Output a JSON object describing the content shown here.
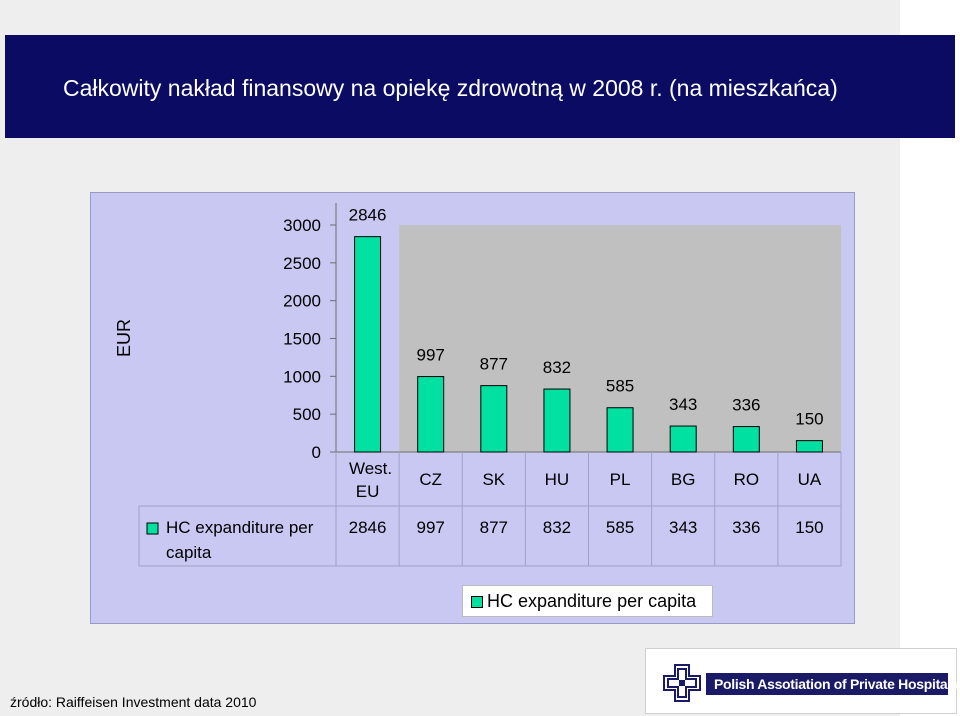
{
  "title": "Całkowity nakład finansowy na opiekę zdrowotną w 2008 r. (na mieszkańca)",
  "source": "źródło: Raiffeisen Investment data 2010",
  "logo": {
    "text": "Polish Assotiation of Private Hospitals"
  },
  "colors": {
    "bar": "#00e0a0",
    "plot_bg": "#c0c0c0",
    "chart_bg": "#c8c8f2",
    "title_bg": "#0b0b63"
  },
  "chart_data": {
    "type": "bar",
    "ylabel": "EUR",
    "ylim": [
      0,
      3000
    ],
    "yticks": [
      "3000",
      "2500",
      "2000",
      "1500",
      "1000",
      "500",
      "0"
    ],
    "categories": [
      "West. EU",
      "CZ",
      "SK",
      "HU",
      "PL",
      "BG",
      "RO",
      "UA"
    ],
    "series": [
      {
        "name": "HC expanditure per capita",
        "values": [
          2846,
          997,
          877,
          832,
          585,
          343,
          336,
          150
        ]
      }
    ],
    "data_labels": [
      "2846",
      "997",
      "877",
      "832",
      "585",
      "343",
      "336",
      "150"
    ],
    "table": {
      "row_label": "HC expanditure per capita",
      "values": [
        "2846",
        "997",
        "877",
        "832",
        "585",
        "343",
        "336",
        "150"
      ]
    },
    "legend": {
      "position": "bottom",
      "label": "HC expanditure per capita"
    },
    "grid": true
  }
}
